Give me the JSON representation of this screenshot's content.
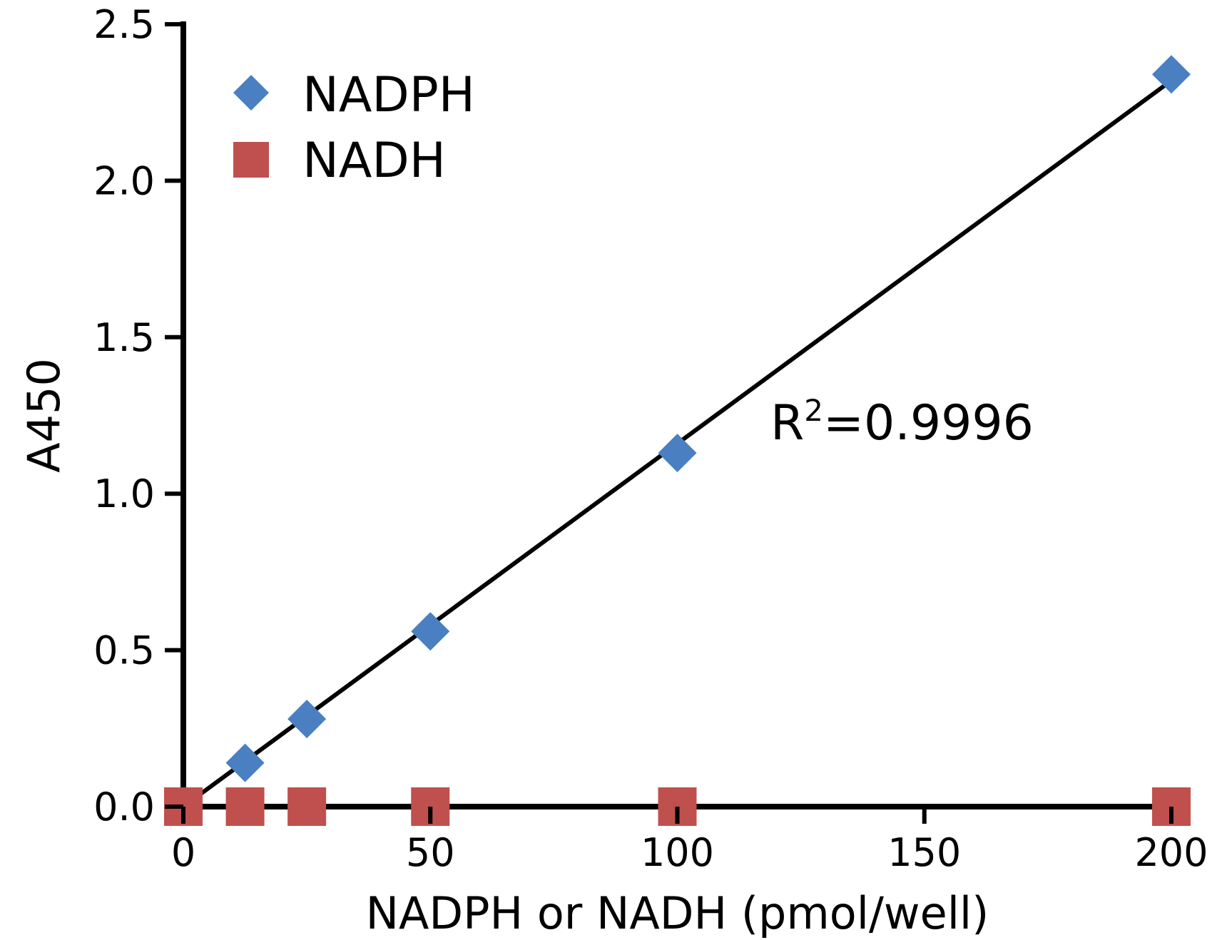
{
  "colors": {
    "nadph": "#4a7fc1",
    "nadh": "#c0504d",
    "axis": "#000000",
    "fit_line": "#000000"
  },
  "chart_data": {
    "type": "scatter",
    "title": "",
    "xlabel": "NADPH or NADH (pmol/well)",
    "ylabel": "A450",
    "xlim": [
      0,
      200
    ],
    "ylim": [
      0,
      2.5
    ],
    "x_ticks": [
      0,
      50,
      100,
      150,
      200
    ],
    "x_tick_labels": [
      "0",
      "50",
      "100",
      "150",
      "200"
    ],
    "y_ticks": [
      0,
      0.5,
      1.0,
      1.5,
      2.0,
      2.5
    ],
    "y_tick_labels": [
      "0.0",
      "0.5",
      "1.0",
      "1.5",
      "2.0",
      "2.5"
    ],
    "grid": false,
    "legend_position": "top-left",
    "series": [
      {
        "name": "NADPH",
        "marker": "diamond",
        "color": "#4a7fc1",
        "x": [
          0,
          12.5,
          25,
          50,
          100,
          200
        ],
        "y": [
          0.0,
          0.14,
          0.28,
          0.56,
          1.13,
          2.34
        ]
      },
      {
        "name": "NADH",
        "marker": "square",
        "color": "#c0504d",
        "x": [
          0,
          12.5,
          25,
          50,
          100,
          200
        ],
        "y": [
          0.0,
          0.0,
          0.0,
          0.0,
          0.0,
          0.0
        ]
      }
    ],
    "fit_line": {
      "series": "NADPH",
      "x": [
        0,
        200
      ],
      "y": [
        0.0,
        2.32
      ]
    },
    "annotations": [
      {
        "text_base": "R",
        "superscript": "2",
        "text_rest": "=0.9996"
      }
    ]
  }
}
